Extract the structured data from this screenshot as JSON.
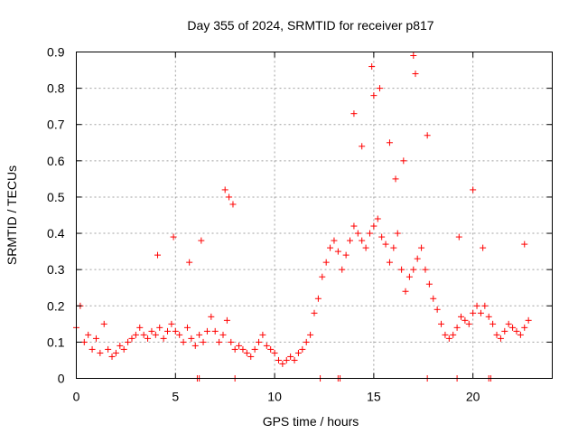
{
  "chart_data": {
    "type": "scatter",
    "title": "Day 355 of 2024, SRMTID for receiver p817",
    "xlabel": "GPS time / hours",
    "ylabel": "SRMTID / TECUs",
    "xlim": [
      0,
      24
    ],
    "ylim": [
      0,
      0.9
    ],
    "xticks": [
      "0",
      "5",
      "10",
      "15",
      "20"
    ],
    "yticks": [
      "0",
      "0.1",
      "0.2",
      "0.3",
      "0.4",
      "0.5",
      "0.6",
      "0.7",
      "0.8",
      "0.9"
    ],
    "grid": true,
    "marker": "+",
    "series": [
      {
        "name": "SRMTID",
        "color": "#ff0000",
        "x": [
          0.0,
          0.2,
          0.4,
          0.6,
          0.8,
          1.0,
          1.2,
          1.4,
          1.6,
          1.8,
          2.0,
          2.2,
          2.4,
          2.6,
          2.8,
          3.0,
          3.2,
          3.4,
          3.6,
          3.8,
          4.0,
          4.2,
          4.4,
          4.6,
          4.8,
          5.0,
          5.2,
          5.4,
          5.6,
          5.8,
          6.0,
          6.2,
          6.4,
          6.6,
          6.8,
          7.0,
          7.2,
          7.4,
          7.6,
          7.8,
          8.0,
          8.2,
          8.4,
          8.6,
          8.8,
          9.0,
          9.2,
          9.4,
          9.6,
          9.8,
          10.0,
          10.2,
          10.4,
          10.6,
          10.8,
          11.0,
          11.2,
          11.4,
          11.6,
          11.8,
          12.0,
          12.2,
          12.4,
          12.6,
          12.8,
          13.0,
          13.2,
          13.4,
          13.6,
          13.8,
          14.0,
          14.2,
          14.4,
          14.6,
          14.8,
          15.0,
          15.2,
          15.4,
          15.6,
          15.8,
          16.0,
          16.2,
          16.4,
          16.6,
          16.8,
          17.0,
          17.2,
          17.4,
          17.6,
          17.8,
          18.0,
          18.2,
          18.4,
          18.6,
          18.8,
          19.0,
          19.2,
          19.4,
          19.6,
          19.8,
          20.0,
          20.2,
          20.4,
          20.6,
          20.8,
          21.0,
          21.2,
          21.4,
          21.6,
          21.8,
          22.0,
          22.2,
          22.4,
          22.6,
          22.8,
          4.1,
          4.9,
          5.7,
          6.3,
          7.5,
          7.7,
          7.9,
          14.0,
          14.4,
          14.9,
          15.0,
          15.3,
          15.8,
          16.1,
          16.5,
          17.0,
          17.1,
          17.7,
          19.3,
          20.0,
          20.5,
          22.6,
          6.1,
          6.2,
          8.0,
          12.3,
          13.2,
          13.3,
          17.7,
          19.2,
          20.8,
          20.9
        ],
        "y": [
          0.14,
          0.2,
          0.1,
          0.12,
          0.08,
          0.11,
          0.07,
          0.15,
          0.08,
          0.06,
          0.07,
          0.09,
          0.08,
          0.1,
          0.11,
          0.12,
          0.14,
          0.12,
          0.11,
          0.13,
          0.12,
          0.14,
          0.11,
          0.13,
          0.15,
          0.13,
          0.12,
          0.1,
          0.14,
          0.11,
          0.09,
          0.12,
          0.1,
          0.13,
          0.17,
          0.13,
          0.1,
          0.12,
          0.16,
          0.1,
          0.08,
          0.09,
          0.08,
          0.07,
          0.06,
          0.08,
          0.1,
          0.12,
          0.09,
          0.08,
          0.07,
          0.05,
          0.04,
          0.05,
          0.06,
          0.05,
          0.07,
          0.08,
          0.1,
          0.12,
          0.18,
          0.22,
          0.28,
          0.32,
          0.36,
          0.38,
          0.35,
          0.3,
          0.34,
          0.38,
          0.42,
          0.4,
          0.38,
          0.36,
          0.4,
          0.42,
          0.44,
          0.39,
          0.37,
          0.32,
          0.36,
          0.4,
          0.3,
          0.24,
          0.28,
          0.3,
          0.33,
          0.36,
          0.3,
          0.26,
          0.22,
          0.19,
          0.15,
          0.12,
          0.11,
          0.12,
          0.14,
          0.17,
          0.16,
          0.15,
          0.18,
          0.2,
          0.18,
          0.2,
          0.17,
          0.15,
          0.12,
          0.11,
          0.13,
          0.15,
          0.14,
          0.13,
          0.12,
          0.14,
          0.16,
          0.34,
          0.39,
          0.32,
          0.38,
          0.52,
          0.5,
          0.48,
          0.73,
          0.64,
          0.86,
          0.78,
          0.8,
          0.65,
          0.55,
          0.6,
          0.89,
          0.84,
          0.67,
          0.39,
          0.52,
          0.36,
          0.37,
          0.0,
          0.0,
          0.0,
          0.0,
          0.0,
          0.0,
          0.0,
          0.0,
          0.0,
          0.0
        ]
      }
    ]
  }
}
